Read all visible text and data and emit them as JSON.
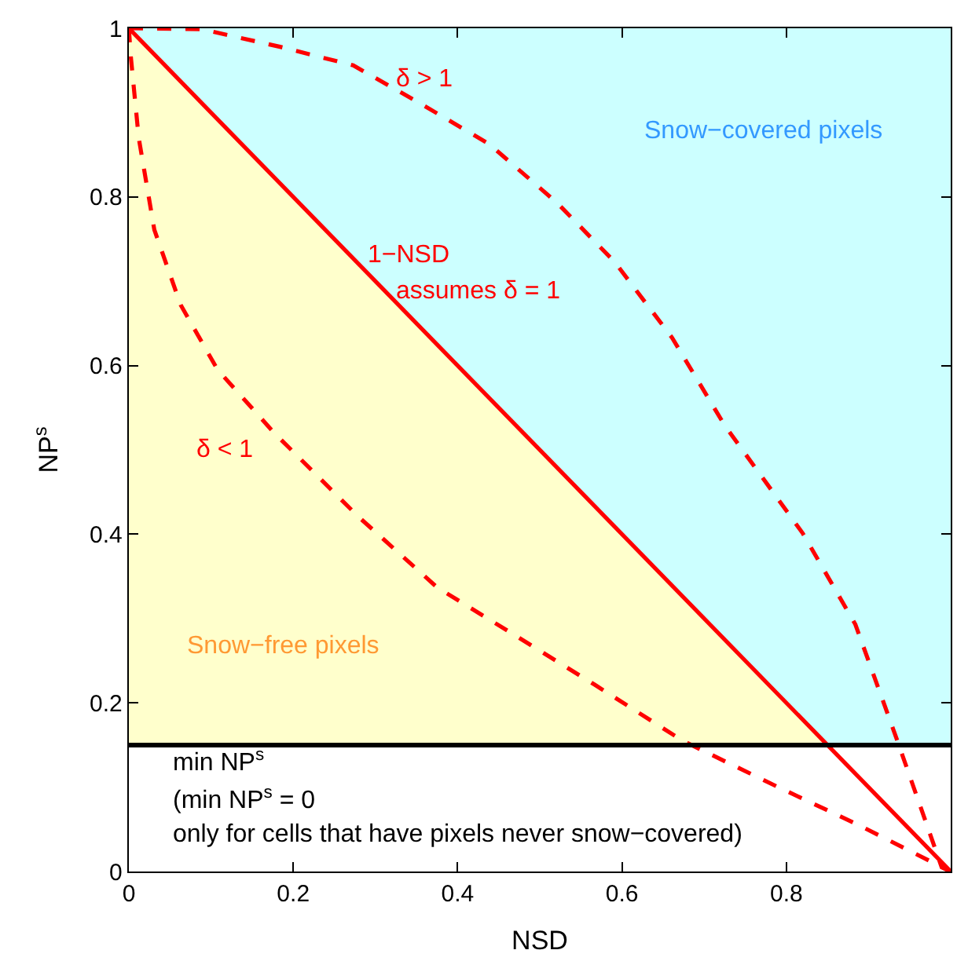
{
  "chart_data": {
    "type": "line",
    "xlabel": "NSD",
    "ylabel": "NP$^{s}$",
    "xlim": [
      0,
      1
    ],
    "ylim": [
      0,
      1
    ],
    "xticks": [
      0,
      0.2,
      0.4,
      0.6,
      0.8
    ],
    "yticks": [
      0,
      0.2,
      0.4,
      0.6,
      0.8,
      1
    ],
    "grid": false,
    "marker": "none",
    "bands": [
      {
        "axis": "y",
        "from": 0.15,
        "to": 1,
        "color": "#ccffff"
      }
    ],
    "ref_lines": [
      {
        "axis": "y",
        "value": 0.15,
        "color": "#000000",
        "line_style": "solid"
      }
    ],
    "series": [
      {
        "type": "area",
        "color": "#ffffcc",
        "x": [
          0,
          0.85
        ],
        "values": [
          1,
          0.15
        ]
      },
      {
        "color": "#ff0000",
        "line_style": "solid",
        "x": [
          0,
          1
        ],
        "values": [
          1,
          0
        ]
      },
      {
        "color": "#ff0000",
        "line_style": "dashed",
        "x": [
          0,
          0.088,
          0.184,
          0.273,
          0.349,
          0.438,
          0.521,
          0.591,
          0.661,
          0.725,
          0.82,
          0.884,
          0.934,
          0.989,
          1
        ],
        "values": [
          1,
          0.999,
          0.978,
          0.956,
          0.914,
          0.863,
          0.793,
          0.723,
          0.633,
          0.529,
          0.401,
          0.293,
          0.158,
          0.005,
          0
        ]
      },
      {
        "color": "#ff0000",
        "line_style": "dashed",
        "x": [
          0,
          0.0025,
          0.012,
          0.031,
          0.063,
          0.108,
          0.177,
          0.279,
          0.375,
          0.47,
          0.566,
          0.674,
          0.788,
          0.884,
          1
        ],
        "values": [
          1,
          0.965,
          0.87,
          0.761,
          0.672,
          0.595,
          0.52,
          0.421,
          0.337,
          0.28,
          0.222,
          0.155,
          0.101,
          0.057,
          0
        ]
      }
    ],
    "annotations": [
      "δ > 1",
      "1−NSD",
      "assumes δ = 1",
      "δ < 1",
      "Snow−covered pixels",
      "Snow−free pixels",
      "min NP$^{s}$",
      "(min NP$^{s}$ = 0",
      "only for cells that have pixels never snow−covered)"
    ]
  }
}
